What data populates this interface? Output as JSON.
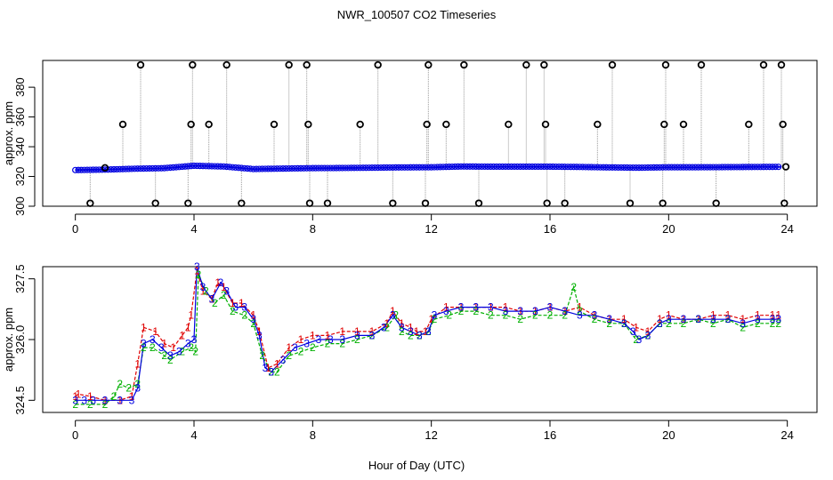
{
  "title": "NWR_100507  CO2 Timeseries",
  "xlabel": "Hour of Day (UTC)",
  "colors": {
    "series1": "#e00000",
    "series2": "#00b000",
    "series3": "#0000e0",
    "outlier": "#000000",
    "cyan": "#00c8e8",
    "connector": "#999999"
  },
  "chart_data": [
    {
      "type": "scatter",
      "name": "top-panel",
      "ylabel": "approx. ppm",
      "xlim": [
        -1.1,
        25
      ],
      "ylim": [
        300,
        398
      ],
      "xticks": [
        0,
        4,
        8,
        12,
        16,
        20,
        24
      ],
      "yticks": [
        300,
        320,
        340,
        360,
        380
      ],
      "baseline": [
        [
          0,
          324.3
        ],
        [
          1,
          324.6
        ],
        [
          2,
          325.2
        ],
        [
          3,
          325.6
        ],
        [
          4,
          327.2
        ],
        [
          5,
          326.7
        ],
        [
          6,
          325.0
        ],
        [
          7,
          325.3
        ],
        [
          8,
          325.6
        ],
        [
          9,
          325.7
        ],
        [
          10,
          325.9
        ],
        [
          11,
          326.1
        ],
        [
          12,
          326.2
        ],
        [
          13,
          326.7
        ],
        [
          14,
          326.6
        ],
        [
          15,
          326.6
        ],
        [
          16,
          326.6
        ],
        [
          17,
          326.4
        ],
        [
          18,
          326.1
        ],
        [
          19,
          325.9
        ],
        [
          20,
          326.2
        ],
        [
          21,
          326.2
        ],
        [
          22,
          326.3
        ],
        [
          23,
          326.4
        ],
        [
          23.8,
          326.5
        ]
      ],
      "outliers": [
        [
          0.5,
          302
        ],
        [
          1.0,
          325.8
        ],
        [
          1.6,
          355
        ],
        [
          2.2,
          395
        ],
        [
          2.7,
          302
        ],
        [
          3.8,
          302
        ],
        [
          3.9,
          355
        ],
        [
          3.95,
          395
        ],
        [
          4.5,
          355
        ],
        [
          5.1,
          395
        ],
        [
          5.6,
          302
        ],
        [
          6.7,
          355
        ],
        [
          7.2,
          395
        ],
        [
          7.8,
          395
        ],
        [
          7.85,
          355
        ],
        [
          7.9,
          302
        ],
        [
          8.5,
          302
        ],
        [
          9.6,
          355
        ],
        [
          10.2,
          395
        ],
        [
          10.7,
          302
        ],
        [
          11.8,
          302
        ],
        [
          11.85,
          355
        ],
        [
          11.9,
          395
        ],
        [
          12.5,
          355
        ],
        [
          13.1,
          395
        ],
        [
          13.6,
          302
        ],
        [
          14.6,
          355
        ],
        [
          15.2,
          395
        ],
        [
          15.8,
          395
        ],
        [
          15.85,
          355
        ],
        [
          15.9,
          302
        ],
        [
          16.5,
          302
        ],
        [
          17.6,
          355
        ],
        [
          18.1,
          395
        ],
        [
          18.7,
          302
        ],
        [
          19.8,
          302
        ],
        [
          19.85,
          355
        ],
        [
          19.9,
          395
        ],
        [
          20.5,
          355
        ],
        [
          21.1,
          395
        ],
        [
          21.6,
          302
        ],
        [
          22.7,
          355
        ],
        [
          23.2,
          395
        ],
        [
          23.8,
          395
        ],
        [
          23.85,
          355
        ],
        [
          23.9,
          302
        ],
        [
          23.95,
          326.5
        ]
      ]
    },
    {
      "type": "line",
      "name": "bottom-panel",
      "ylabel": "approx. ppm",
      "xlim": [
        -1.1,
        25
      ],
      "ylim": [
        324.2,
        327.8
      ],
      "xticks": [
        0,
        4,
        8,
        12,
        16,
        20,
        24
      ],
      "yticks": [
        324.5,
        326.0,
        327.5
      ],
      "ytick_labels": [
        "324.5",
        "326.0",
        "327.5"
      ],
      "series": [
        {
          "name": "1",
          "points": [
            [
              0.0,
              324.6
            ],
            [
              0.1,
              324.65
            ],
            [
              0.5,
              324.6
            ],
            [
              1.0,
              324.5
            ],
            [
              1.5,
              324.5
            ],
            [
              1.9,
              324.6
            ],
            [
              2.1,
              325.4
            ],
            [
              2.3,
              326.3
            ],
            [
              2.7,
              326.2
            ],
            [
              3.0,
              325.9
            ],
            [
              3.3,
              325.8
            ],
            [
              3.6,
              326.1
            ],
            [
              3.8,
              326.3
            ],
            [
              3.9,
              326.6
            ],
            [
              4.1,
              327.7
            ],
            [
              4.3,
              327.2
            ],
            [
              4.6,
              327.0
            ],
            [
              4.8,
              327.4
            ],
            [
              5.0,
              327.3
            ],
            [
              5.3,
              326.9
            ],
            [
              5.6,
              326.9
            ],
            [
              6.0,
              326.6
            ],
            [
              6.2,
              326.2
            ],
            [
              6.5,
              325.3
            ],
            [
              6.8,
              325.4
            ],
            [
              7.2,
              325.8
            ],
            [
              7.6,
              326.0
            ],
            [
              8.0,
              326.1
            ],
            [
              8.5,
              326.1
            ],
            [
              9.0,
              326.2
            ],
            [
              9.5,
              326.2
            ],
            [
              10.0,
              326.2
            ],
            [
              10.5,
              326.4
            ],
            [
              10.7,
              326.7
            ],
            [
              11.0,
              326.4
            ],
            [
              11.3,
              326.3
            ],
            [
              11.5,
              326.2
            ],
            [
              11.8,
              326.2
            ],
            [
              12.0,
              326.5
            ],
            [
              12.5,
              326.8
            ],
            [
              13.0,
              326.8
            ],
            [
              13.5,
              326.8
            ],
            [
              14.0,
              326.8
            ],
            [
              14.5,
              326.8
            ],
            [
              15.0,
              326.7
            ],
            [
              15.5,
              326.7
            ],
            [
              16.0,
              326.8
            ],
            [
              16.5,
              326.7
            ],
            [
              17.0,
              326.8
            ],
            [
              17.5,
              326.6
            ],
            [
              18.0,
              326.5
            ],
            [
              18.5,
              326.5
            ],
            [
              18.9,
              326.3
            ],
            [
              19.3,
              326.2
            ],
            [
              19.7,
              326.5
            ],
            [
              20.0,
              326.6
            ],
            [
              20.5,
              326.5
            ],
            [
              21.0,
              326.5
            ],
            [
              21.5,
              326.6
            ],
            [
              22.0,
              326.6
            ],
            [
              22.5,
              326.5
            ],
            [
              23.0,
              326.6
            ],
            [
              23.5,
              326.6
            ],
            [
              23.7,
              326.6
            ]
          ]
        },
        {
          "name": "2",
          "points": [
            [
              0.0,
              324.4
            ],
            [
              0.5,
              324.4
            ],
            [
              1.0,
              324.4
            ],
            [
              1.3,
              324.6
            ],
            [
              1.5,
              324.9
            ],
            [
              1.8,
              324.8
            ],
            [
              2.1,
              324.9
            ],
            [
              2.3,
              325.8
            ],
            [
              2.6,
              325.8
            ],
            [
              3.0,
              325.6
            ],
            [
              3.2,
              325.5
            ],
            [
              3.6,
              325.7
            ],
            [
              3.9,
              325.8
            ],
            [
              4.05,
              325.7
            ],
            [
              4.15,
              327.6
            ],
            [
              4.4,
              327.2
            ],
            [
              4.7,
              326.9
            ],
            [
              5.0,
              327.1
            ],
            [
              5.3,
              326.7
            ],
            [
              5.7,
              326.6
            ],
            [
              6.0,
              326.4
            ],
            [
              6.3,
              325.6
            ],
            [
              6.6,
              325.2
            ],
            [
              6.8,
              325.2
            ],
            [
              7.2,
              325.6
            ],
            [
              7.6,
              325.7
            ],
            [
              8.0,
              325.8
            ],
            [
              8.5,
              325.9
            ],
            [
              9.0,
              325.9
            ],
            [
              9.5,
              326.0
            ],
            [
              10.0,
              326.1
            ],
            [
              10.5,
              326.3
            ],
            [
              10.8,
              326.6
            ],
            [
              11.0,
              326.2
            ],
            [
              11.3,
              326.1
            ],
            [
              11.6,
              326.1
            ],
            [
              11.9,
              326.2
            ],
            [
              12.1,
              326.5
            ],
            [
              12.6,
              326.6
            ],
            [
              13.0,
              326.7
            ],
            [
              13.5,
              326.7
            ],
            [
              14.0,
              326.6
            ],
            [
              14.5,
              326.6
            ],
            [
              15.0,
              326.5
            ],
            [
              15.5,
              326.6
            ],
            [
              16.0,
              326.6
            ],
            [
              16.5,
              326.6
            ],
            [
              16.8,
              327.3
            ],
            [
              17.0,
              326.7
            ],
            [
              17.5,
              326.5
            ],
            [
              18.0,
              326.4
            ],
            [
              18.5,
              326.4
            ],
            [
              18.9,
              326.0
            ],
            [
              19.3,
              326.1
            ],
            [
              19.7,
              326.4
            ],
            [
              20.0,
              326.4
            ],
            [
              20.5,
              326.4
            ],
            [
              21.0,
              326.5
            ],
            [
              21.5,
              326.4
            ],
            [
              22.0,
              326.5
            ],
            [
              22.5,
              326.3
            ],
            [
              23.0,
              326.4
            ],
            [
              23.5,
              326.4
            ],
            [
              23.7,
              326.4
            ]
          ]
        },
        {
          "name": "3",
          "points": [
            [
              0.0,
              324.5
            ],
            [
              0.3,
              324.5
            ],
            [
              0.6,
              324.5
            ],
            [
              1.0,
              324.5
            ],
            [
              1.5,
              324.5
            ],
            [
              1.9,
              324.5
            ],
            [
              2.1,
              324.8
            ],
            [
              2.3,
              325.9
            ],
            [
              2.6,
              326.0
            ],
            [
              2.9,
              325.8
            ],
            [
              3.2,
              325.6
            ],
            [
              3.5,
              325.7
            ],
            [
              3.8,
              325.9
            ],
            [
              4.0,
              326.0
            ],
            [
              4.1,
              327.8
            ],
            [
              4.3,
              327.3
            ],
            [
              4.6,
              327.0
            ],
            [
              4.9,
              327.4
            ],
            [
              5.1,
              327.2
            ],
            [
              5.4,
              326.8
            ],
            [
              5.7,
              326.8
            ],
            [
              6.0,
              326.5
            ],
            [
              6.2,
              326.1
            ],
            [
              6.4,
              325.3
            ],
            [
              6.6,
              325.2
            ],
            [
              7.0,
              325.5
            ],
            [
              7.4,
              325.8
            ],
            [
              7.8,
              325.9
            ],
            [
              8.2,
              326.0
            ],
            [
              8.6,
              326.0
            ],
            [
              9.0,
              326.0
            ],
            [
              9.5,
              326.1
            ],
            [
              10.0,
              326.1
            ],
            [
              10.4,
              326.3
            ],
            [
              10.7,
              326.6
            ],
            [
              11.0,
              326.3
            ],
            [
              11.3,
              326.2
            ],
            [
              11.6,
              326.1
            ],
            [
              11.9,
              326.2
            ],
            [
              12.1,
              326.6
            ],
            [
              12.5,
              326.7
            ],
            [
              13.0,
              326.8
            ],
            [
              13.5,
              326.8
            ],
            [
              14.0,
              326.8
            ],
            [
              14.5,
              326.7
            ],
            [
              15.0,
              326.7
            ],
            [
              15.5,
              326.7
            ],
            [
              16.0,
              326.8
            ],
            [
              16.5,
              326.7
            ],
            [
              17.0,
              326.6
            ],
            [
              17.5,
              326.6
            ],
            [
              18.0,
              326.5
            ],
            [
              18.5,
              326.4
            ],
            [
              18.8,
              326.2
            ],
            [
              19.0,
              326.0
            ],
            [
              19.3,
              326.1
            ],
            [
              19.7,
              326.4
            ],
            [
              20.0,
              326.5
            ],
            [
              20.5,
              326.5
            ],
            [
              21.0,
              326.5
            ],
            [
              21.5,
              326.5
            ],
            [
              22.0,
              326.5
            ],
            [
              22.5,
              326.4
            ],
            [
              23.0,
              326.5
            ],
            [
              23.5,
              326.5
            ],
            [
              23.7,
              326.5
            ]
          ]
        }
      ]
    }
  ]
}
